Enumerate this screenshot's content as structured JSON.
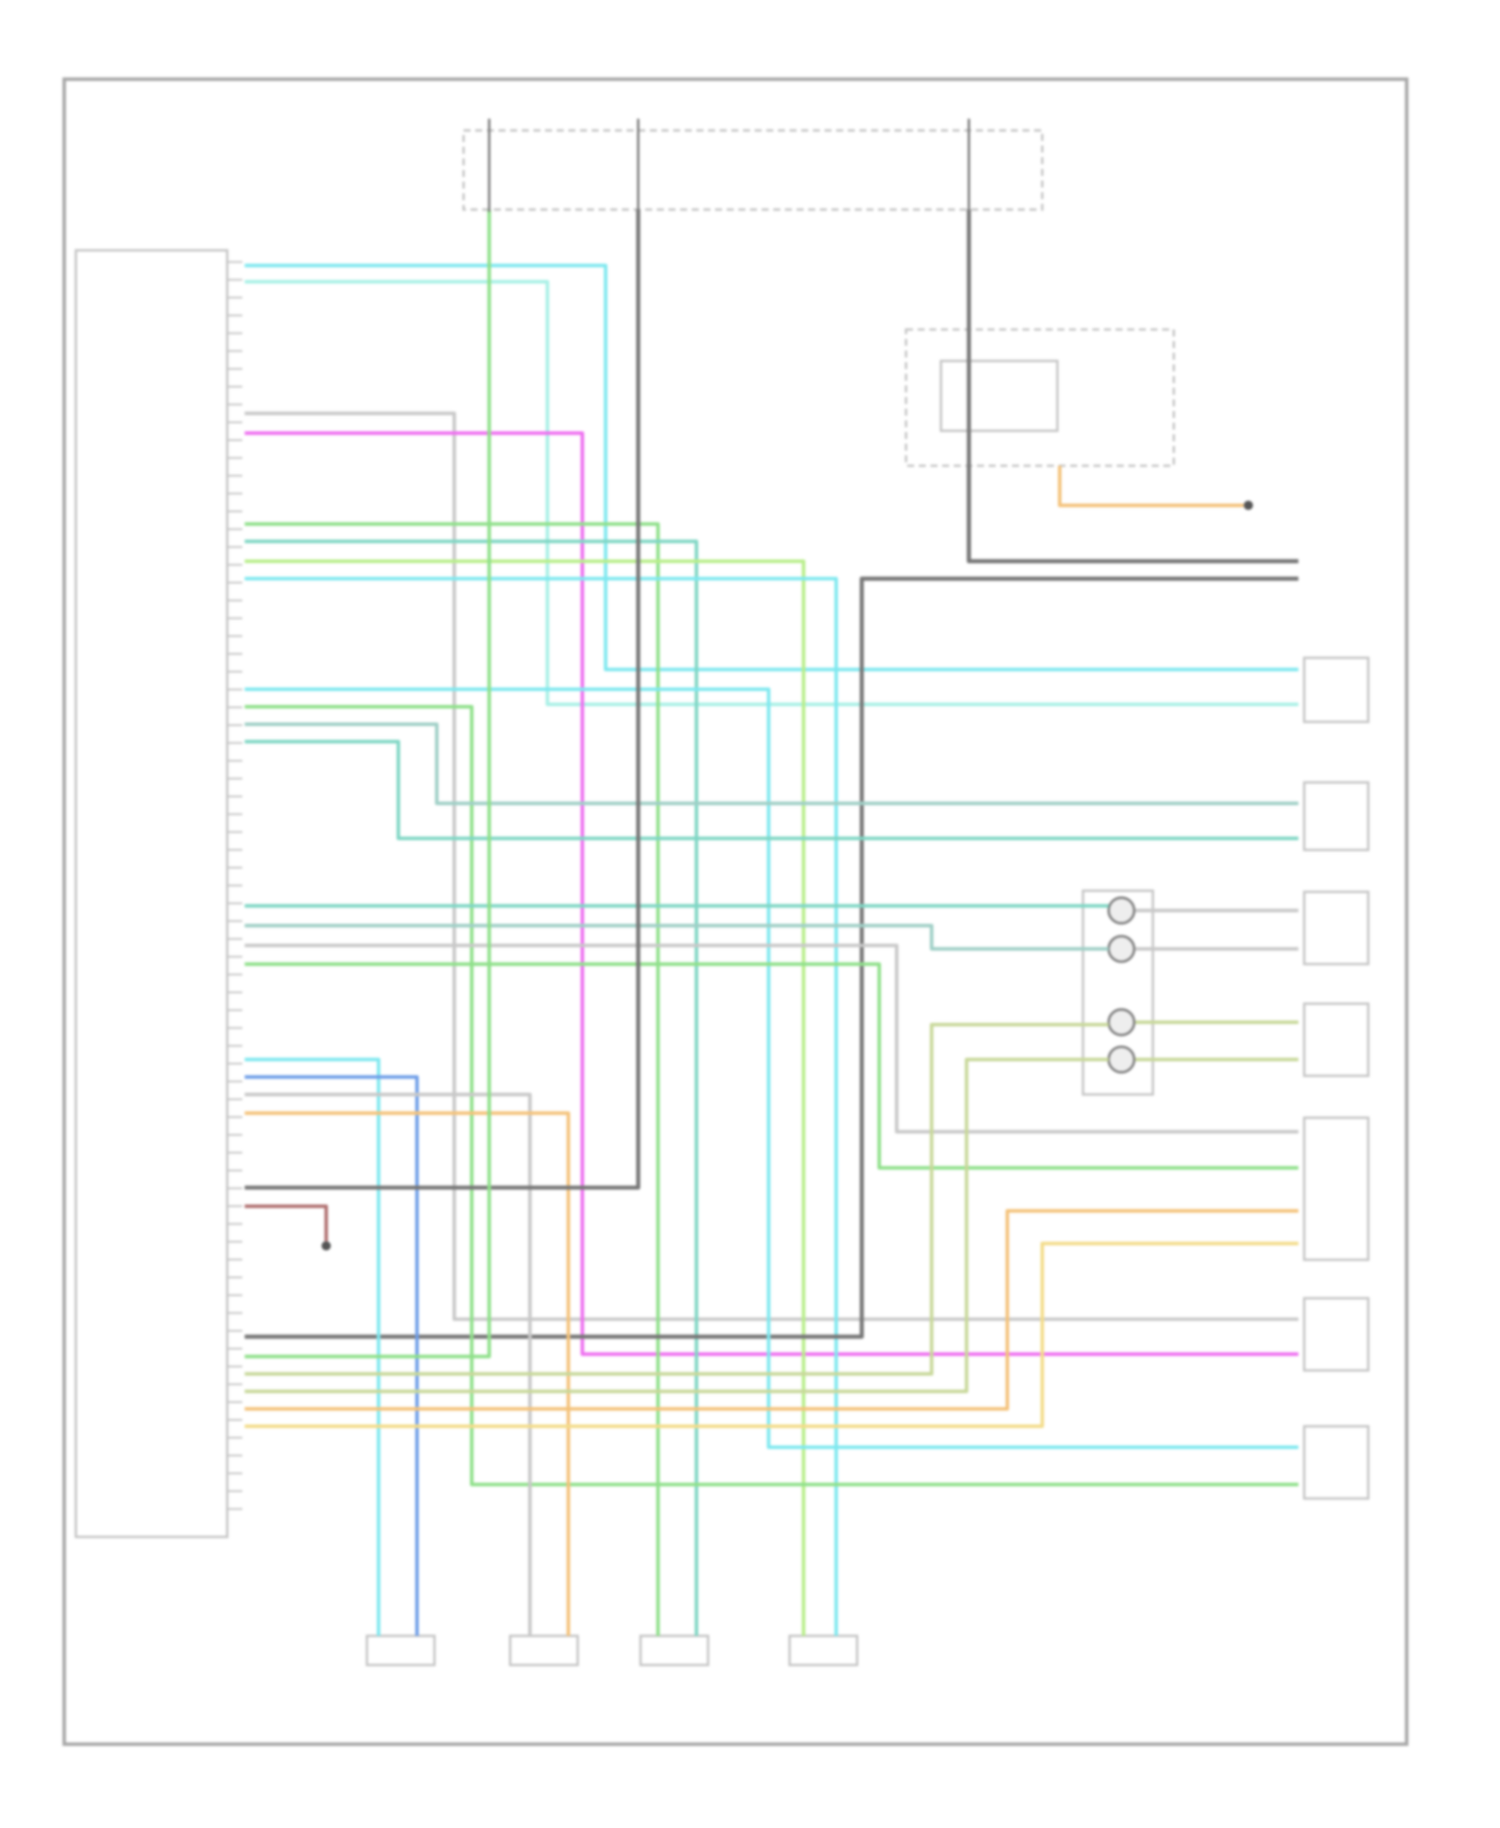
{
  "diagram": {
    "colors": {
      "frame": "#a8a8a8",
      "component": "#c4c4c4",
      "cyan": "#7fe8ef",
      "light_cyan": "#a8f0e6",
      "gray": "#c8c8c8",
      "dark_gray": "#777777",
      "magenta": "#ee6ef0",
      "green": "#8fe08a",
      "teal": "#7fd6c4",
      "lime": "#b8ee8a",
      "blue": "#6f9ee8",
      "orange": "#f4c27a",
      "yellow": "#f3dc8a",
      "olive": "#c8d89a",
      "dark_red": "#b07070",
      "gray_teal": "#9fcfc6"
    }
  }
}
